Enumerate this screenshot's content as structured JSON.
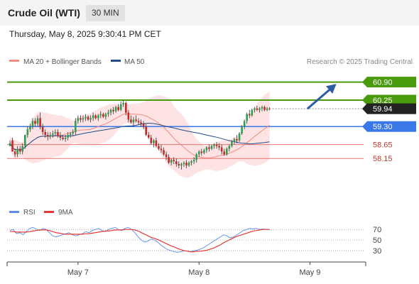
{
  "header": {
    "title": "Crude Oil (WTI)",
    "timeframe": "30 MIN",
    "timestamp": "Thursday, May 8, 2025 9:30:41 PM CET"
  },
  "legend": [
    {
      "label": "MA 20 + Bollinger Bands",
      "color": "#f28b82"
    },
    {
      "label": "MA 50",
      "color": "#1f4e8c"
    }
  ],
  "copyright": "Research © 2025 Trading Central",
  "chart_data": {
    "type": "candlestick",
    "ylim": [
      56.7,
      61.4
    ],
    "time_labels": [
      {
        "label": "May 7",
        "index": 27
      },
      {
        "label": "May 8",
        "index": 75
      },
      {
        "label": "May 9",
        "index": 119
      }
    ],
    "levels": [
      {
        "value": 60.9,
        "label": "60.90",
        "color": "#4a9a0e",
        "style": "solid",
        "tag": true
      },
      {
        "value": 60.25,
        "label": "60.25",
        "color": "#4a9a0e",
        "style": "solid",
        "tag": true
      },
      {
        "value": 59.94,
        "label": "59.94",
        "color": "#888888",
        "style": "dotted",
        "tag": true,
        "tagColor": "#222222"
      },
      {
        "value": 59.3,
        "label": "59.30",
        "color": "#3b78e7",
        "style": "solid",
        "tag": true
      },
      {
        "value": 58.65,
        "label": "58.65",
        "color": "#e57373",
        "style": "solid",
        "tag": false
      },
      {
        "value": 58.15,
        "label": "58.15",
        "color": "#e57373",
        "style": "solid",
        "tag": false
      }
    ],
    "scenario_arrow": {
      "from_index": 118,
      "from_value": 59.94,
      "to_index": 129,
      "to_value": 60.8,
      "color": "#2b5ca8"
    },
    "candles": [
      [
        58.6,
        58.8,
        58.6,
        58.7
      ],
      [
        58.8,
        58.9,
        58.4,
        58.4
      ],
      [
        58.4,
        58.5,
        58.2,
        58.3
      ],
      [
        58.3,
        58.6,
        58.2,
        58.5
      ],
      [
        58.5,
        58.6,
        58.3,
        58.4
      ],
      [
        58.4,
        58.7,
        58.3,
        58.6
      ],
      [
        58.6,
        59.0,
        58.5,
        59.0
      ],
      [
        59.0,
        59.3,
        58.9,
        59.2
      ],
      [
        59.2,
        59.4,
        59.1,
        59.3
      ],
      [
        59.3,
        59.6,
        59.2,
        59.5
      ],
      [
        59.5,
        59.6,
        59.3,
        59.4
      ],
      [
        59.4,
        59.7,
        59.3,
        59.6
      ],
      [
        59.6,
        59.8,
        59.2,
        59.3
      ],
      [
        59.3,
        59.4,
        59.0,
        59.1
      ],
      [
        59.1,
        59.2,
        58.9,
        59.0
      ],
      [
        59.0,
        59.1,
        58.8,
        58.95
      ],
      [
        58.95,
        59.1,
        58.85,
        59.0
      ],
      [
        59.0,
        59.15,
        58.9,
        59.05
      ],
      [
        59.05,
        59.2,
        58.95,
        59.1
      ],
      [
        59.1,
        59.2,
        58.9,
        58.95
      ],
      [
        58.95,
        59.1,
        58.8,
        58.9
      ],
      [
        58.9,
        59.0,
        58.8,
        58.85
      ],
      [
        58.85,
        59.0,
        58.75,
        58.9
      ],
      [
        58.9,
        59.1,
        58.8,
        59.0
      ],
      [
        59.0,
        59.1,
        58.9,
        59.05
      ],
      [
        59.05,
        59.2,
        58.95,
        59.1
      ],
      [
        59.1,
        59.6,
        59.0,
        59.5
      ],
      [
        59.5,
        59.7,
        59.4,
        59.6
      ],
      [
        59.6,
        59.7,
        59.45,
        59.55
      ],
      [
        59.55,
        59.7,
        59.45,
        59.6
      ],
      [
        59.6,
        59.75,
        59.5,
        59.65
      ],
      [
        59.65,
        59.7,
        59.5,
        59.55
      ],
      [
        59.55,
        59.7,
        59.45,
        59.6
      ],
      [
        59.6,
        59.8,
        59.5,
        59.7
      ],
      [
        59.7,
        59.75,
        59.55,
        59.6
      ],
      [
        59.6,
        59.75,
        59.5,
        59.7
      ],
      [
        59.7,
        59.85,
        59.6,
        59.75
      ],
      [
        59.75,
        59.8,
        59.6,
        59.65
      ],
      [
        59.65,
        59.8,
        59.55,
        59.75
      ],
      [
        59.75,
        59.9,
        59.65,
        59.8
      ],
      [
        59.8,
        59.95,
        59.7,
        59.9
      ],
      [
        59.9,
        60.0,
        59.75,
        59.85
      ],
      [
        59.85,
        60.05,
        59.8,
        60.0
      ],
      [
        60.0,
        60.1,
        59.85,
        59.9
      ],
      [
        59.9,
        60.2,
        59.85,
        60.1
      ],
      [
        60.1,
        60.25,
        60.0,
        60.15
      ],
      [
        60.15,
        60.2,
        59.7,
        59.8
      ],
      [
        59.8,
        59.9,
        59.45,
        59.55
      ],
      [
        59.55,
        59.7,
        59.4,
        59.45
      ],
      [
        59.45,
        59.65,
        59.3,
        59.55
      ],
      [
        59.55,
        59.7,
        59.45,
        59.5
      ],
      [
        59.5,
        59.6,
        59.35,
        59.45
      ],
      [
        59.45,
        59.55,
        59.3,
        59.4
      ],
      [
        59.4,
        59.5,
        59.2,
        59.3
      ],
      [
        59.3,
        59.4,
        58.95,
        59.0
      ],
      [
        59.0,
        59.1,
        58.85,
        58.9
      ],
      [
        58.9,
        59.0,
        58.65,
        58.7
      ],
      [
        58.7,
        58.85,
        58.55,
        58.8
      ],
      [
        58.8,
        58.9,
        58.55,
        58.6
      ],
      [
        58.6,
        58.7,
        58.45,
        58.5
      ],
      [
        58.5,
        58.65,
        58.35,
        58.45
      ],
      [
        58.45,
        58.55,
        58.25,
        58.3
      ],
      [
        58.3,
        58.4,
        58.1,
        58.2
      ],
      [
        58.2,
        58.3,
        57.95,
        58.0
      ],
      [
        58.0,
        58.15,
        57.9,
        58.1
      ],
      [
        58.1,
        58.2,
        57.95,
        58.05
      ],
      [
        58.05,
        58.15,
        57.85,
        57.95
      ],
      [
        57.95,
        58.05,
        57.8,
        57.9
      ],
      [
        57.9,
        58.0,
        57.75,
        57.95
      ],
      [
        57.95,
        58.05,
        57.85,
        58.0
      ],
      [
        58.0,
        58.1,
        57.8,
        57.9
      ],
      [
        57.9,
        58.05,
        57.85,
        58.0
      ],
      [
        58.0,
        58.1,
        57.9,
        58.05
      ],
      [
        58.05,
        58.2,
        57.95,
        58.1
      ],
      [
        58.1,
        58.35,
        58.0,
        58.3
      ],
      [
        58.3,
        58.45,
        58.2,
        58.4
      ],
      [
        58.4,
        58.5,
        58.25,
        58.35
      ],
      [
        58.35,
        58.5,
        58.3,
        58.45
      ],
      [
        58.45,
        58.6,
        58.35,
        58.55
      ],
      [
        58.55,
        58.65,
        58.4,
        58.5
      ],
      [
        58.5,
        58.65,
        58.45,
        58.6
      ],
      [
        58.6,
        58.7,
        58.5,
        58.65
      ],
      [
        58.65,
        58.75,
        58.5,
        58.6
      ],
      [
        58.6,
        58.7,
        58.45,
        58.55
      ],
      [
        58.55,
        58.65,
        58.3,
        58.4
      ],
      [
        58.4,
        58.5,
        58.25,
        58.3
      ],
      [
        58.3,
        58.55,
        58.25,
        58.5
      ],
      [
        58.5,
        58.65,
        58.4,
        58.6
      ],
      [
        58.6,
        58.8,
        58.55,
        58.75
      ],
      [
        58.75,
        58.9,
        58.65,
        58.85
      ],
      [
        58.85,
        59.0,
        58.7,
        58.8
      ],
      [
        58.8,
        59.1,
        58.75,
        59.05
      ],
      [
        59.05,
        59.35,
        59.0,
        59.3
      ],
      [
        59.3,
        59.55,
        59.2,
        59.5
      ],
      [
        59.5,
        59.8,
        59.4,
        59.75
      ],
      [
        59.75,
        59.9,
        59.6,
        59.7
      ],
      [
        59.7,
        59.95,
        59.65,
        59.9
      ],
      [
        59.9,
        60.0,
        59.8,
        59.95
      ],
      [
        59.95,
        60.05,
        59.85,
        59.9
      ],
      [
        59.9,
        60.0,
        59.8,
        59.95
      ],
      [
        59.95,
        60.05,
        59.85,
        60.0
      ],
      [
        60.0,
        60.05,
        59.85,
        59.9
      ],
      [
        59.9,
        60.0,
        59.85,
        59.95
      ],
      [
        59.95,
        60.0,
        59.88,
        59.94
      ]
    ],
    "rsi": {
      "ticks": [
        70,
        50,
        30
      ],
      "ylim": [
        10,
        85
      ],
      "series": [
        {
          "name": "RSI",
          "color": "#5b8def",
          "values": [
            68,
            70,
            62,
            64,
            60,
            66,
            72,
            74,
            71,
            68,
            72,
            70,
            64,
            58,
            56,
            58,
            60,
            62,
            64,
            60,
            58,
            60,
            62,
            66,
            64,
            68,
            70,
            72,
            68,
            66,
            70,
            72,
            74,
            70,
            68,
            72,
            74,
            70,
            64,
            56,
            50,
            46,
            48,
            52,
            50,
            46,
            40,
            36,
            32,
            30,
            28,
            27,
            28,
            30,
            29,
            28,
            30,
            31,
            33,
            36,
            40,
            44,
            48,
            52,
            56,
            60,
            58,
            54,
            56,
            60,
            64,
            68,
            70,
            72,
            71,
            72,
            70,
            71,
            70,
            70
          ]
        },
        {
          "name": "9MA",
          "color": "#e53935",
          "values": [
            66,
            66,
            65,
            65,
            65,
            65,
            66,
            67,
            68,
            69,
            69,
            69,
            68,
            66,
            64,
            63,
            62,
            61,
            61,
            61,
            61,
            61,
            61,
            62,
            62,
            63,
            64,
            65,
            66,
            67,
            67,
            68,
            69,
            69,
            69,
            70,
            70,
            70,
            69,
            67,
            64,
            61,
            58,
            55,
            53,
            51,
            48,
            45,
            42,
            39,
            37,
            34,
            32,
            30,
            29,
            28,
            28,
            29,
            29,
            30,
            31,
            33,
            35,
            38,
            41,
            45,
            48,
            51,
            54,
            57,
            59,
            61,
            63,
            65,
            67,
            68,
            69,
            70,
            70,
            70
          ]
        }
      ]
    }
  }
}
